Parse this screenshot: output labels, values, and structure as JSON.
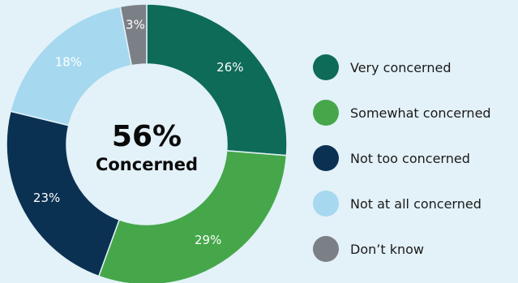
{
  "chart_data": {
    "type": "pie",
    "categories": [
      "Very concerned",
      "Somewhat concerned",
      "Not too concerned",
      "Not at all concerned",
      "Don’t know"
    ],
    "values": [
      26,
      29,
      23,
      18,
      3
    ],
    "value_labels": [
      "26%",
      "29%",
      "23%",
      "18%",
      "3%"
    ],
    "colors": [
      "#0d6b57",
      "#45a74a",
      "#0b3152",
      "#a6d8ef",
      "#7b7f86"
    ],
    "center_value": "56%",
    "center_label": "Concerned",
    "legend_position": "right",
    "donut": true
  }
}
